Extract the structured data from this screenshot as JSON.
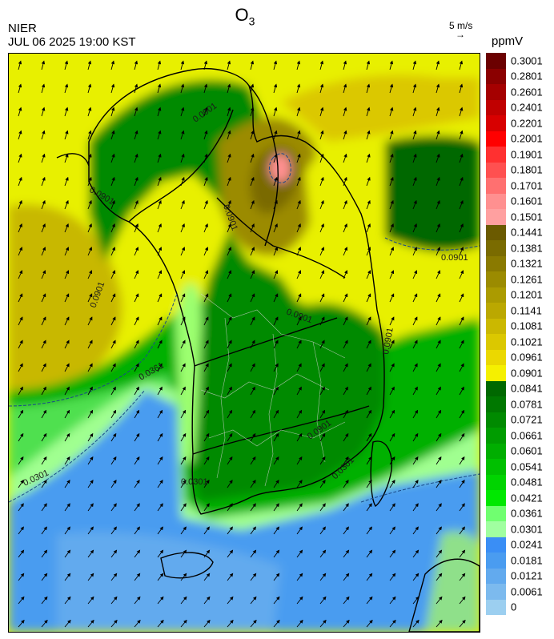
{
  "title": {
    "main": "O",
    "sub": "3"
  },
  "header": {
    "agency": "NIER",
    "datetime": "JUL 06 2025 19:00 KST"
  },
  "vector_scale": {
    "label": "5 m/s",
    "arrow": "→"
  },
  "legend": {
    "unit": "ppmV",
    "ticks": [
      "0.3001",
      "0.2801",
      "0.2601",
      "0.2401",
      "0.2201",
      "0.2001",
      "0.1901",
      "0.1801",
      "0.1701",
      "0.1601",
      "0.1501",
      "0.1441",
      "0.1381",
      "0.1321",
      "0.1261",
      "0.1201",
      "0.1141",
      "0.1081",
      "0.1021",
      "0.0961",
      "0.0901",
      "0.0841",
      "0.0781",
      "0.0721",
      "0.0661",
      "0.0601",
      "0.0541",
      "0.0481",
      "0.0421",
      "0.0361",
      "0.0301",
      "0.0241",
      "0.0181",
      "0.0121",
      "0.0061",
      "0"
    ],
    "colors": [
      "#6b0000",
      "#8b0000",
      "#a50000",
      "#c00000",
      "#d80000",
      "#ff0000",
      "#ff3030",
      "#ff5050",
      "#ff7070",
      "#ff9090",
      "#ffa0a0",
      "#6b5a00",
      "#7a6b00",
      "#8a7a00",
      "#9b8b00",
      "#ab9b00",
      "#bba800",
      "#cbb800",
      "#dbc800",
      "#ebd800",
      "#f5f000",
      "#006800",
      "#007800",
      "#008a00",
      "#009c00",
      "#00ae00",
      "#00c000",
      "#00d400",
      "#00e800",
      "#70ff70",
      "#a0ffa0",
      "#3a8ef5",
      "#4a9cf0",
      "#62aaee",
      "#7cbaee",
      "#9ccff0"
    ]
  },
  "contour_labels": [
    {
      "text": "0.0901"
    },
    {
      "text": "0.0901"
    },
    {
      "text": "0.0901"
    },
    {
      "text": "0.0901"
    },
    {
      "text": "0.0901"
    },
    {
      "text": "0.0901"
    },
    {
      "text": "0.0901"
    },
    {
      "text": "0.0301"
    },
    {
      "text": "0.0301"
    },
    {
      "text": "0.0301"
    },
    {
      "text": "0.0361"
    },
    {
      "text": "0.0901"
    }
  ]
}
